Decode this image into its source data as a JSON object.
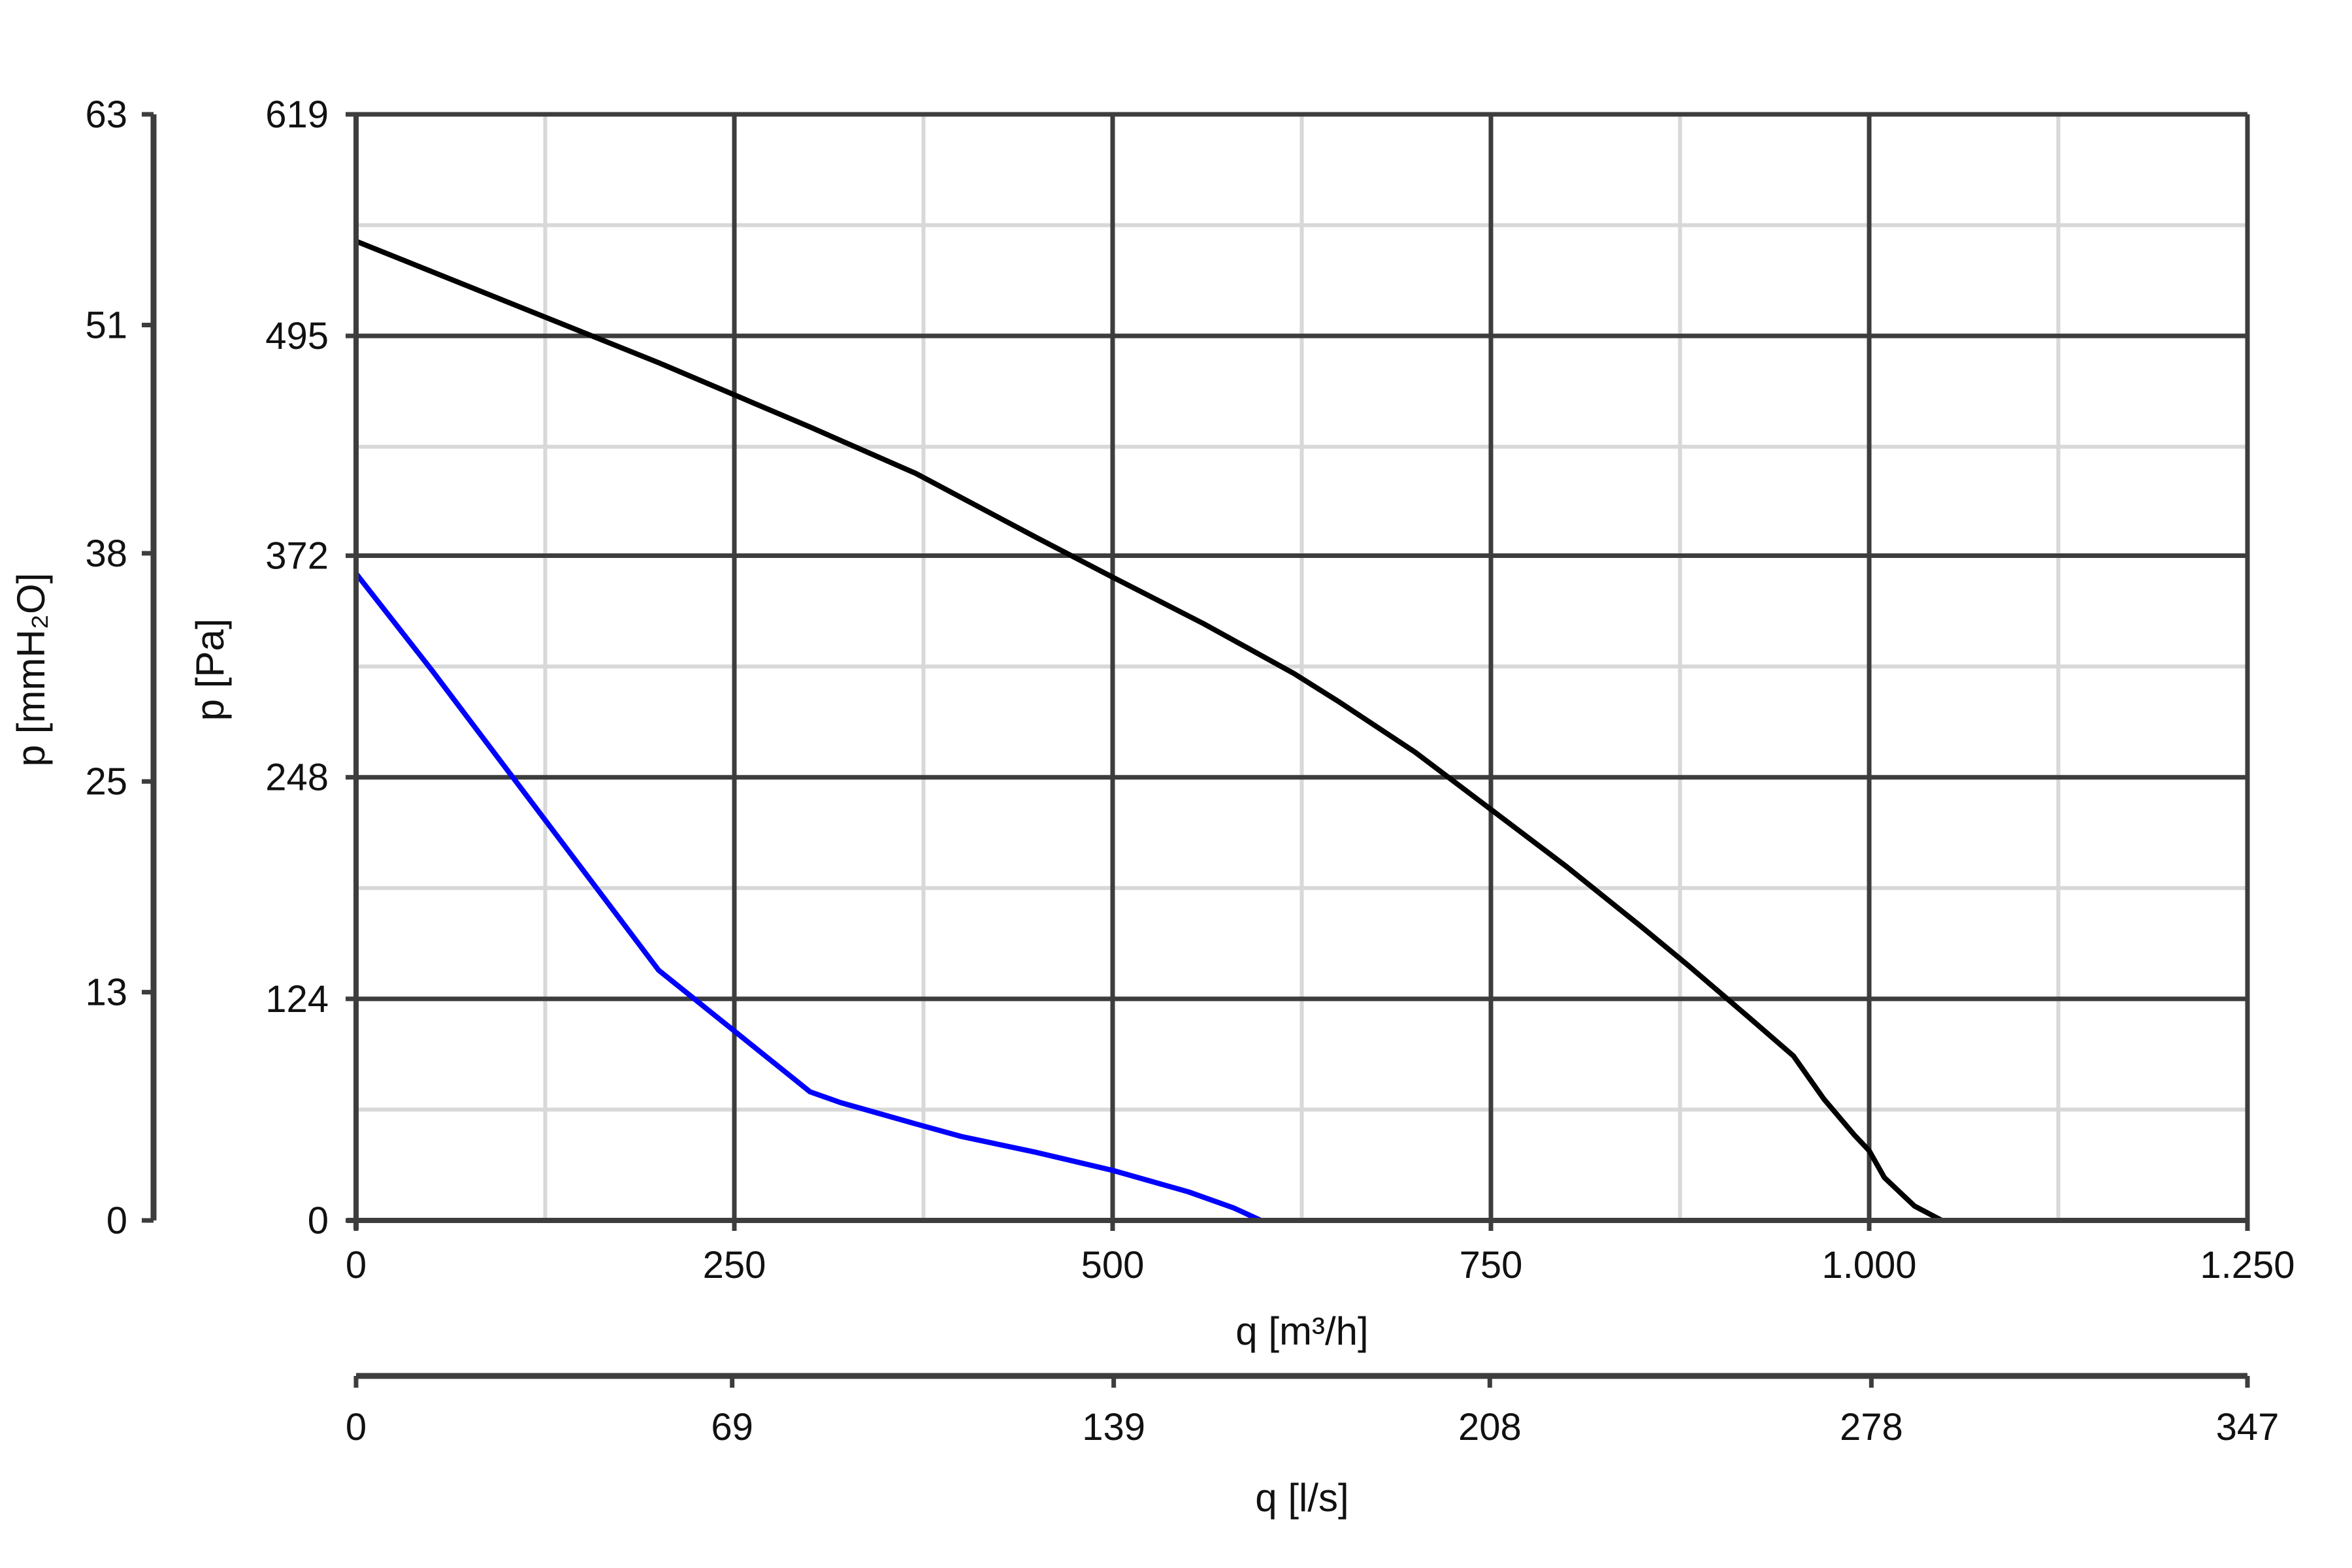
{
  "chart_data": {
    "type": "line",
    "x_axis": {
      "label": "q [m³/h]",
      "range": [
        0,
        1250
      ],
      "ticks": [
        0,
        250,
        500,
        750,
        1000,
        1250
      ],
      "tick_labels": [
        "0",
        "250",
        "500",
        "750",
        "1.000",
        "1.250"
      ],
      "minor_gridlines": [
        125,
        375,
        625,
        875,
        1125
      ]
    },
    "x_axis_secondary": {
      "label": "q [l/s]",
      "range": [
        0,
        347
      ],
      "ticks": [
        0,
        69,
        139,
        208,
        278,
        347
      ],
      "tick_labels": [
        "0",
        "69",
        "139",
        "208",
        "278",
        "347"
      ]
    },
    "y_axis": {
      "label": "p [Pa]",
      "range": [
        0,
        619
      ],
      "ticks": [
        0,
        124,
        248,
        372,
        495,
        619
      ],
      "tick_labels": [
        "0",
        "124",
        "248",
        "372",
        "495",
        "619"
      ],
      "minor_gridlines": [
        62,
        186,
        310,
        433,
        557
      ]
    },
    "y_axis_secondary": {
      "label": "p [mmH₂O]",
      "range": [
        0,
        63
      ],
      "ticks": [
        0,
        13,
        25,
        38,
        51,
        63
      ],
      "tick_labels": [
        "0",
        "13",
        "25",
        "38",
        "51",
        "63"
      ]
    },
    "grid": true,
    "series": [
      {
        "color": "#000000",
        "x": [
          0,
          100,
          200,
          300,
          370,
          450,
          500,
          560,
          620,
          650,
          700,
          750,
          800,
          850,
          880,
          920,
          950,
          970,
          990,
          1000,
          1010,
          1030,
          1048
        ],
        "y": [
          548,
          514,
          480,
          444,
          418,
          382,
          360,
          334,
          306,
          290,
          262,
          230,
          198,
          164,
          143,
          114,
          92,
          68,
          48,
          39,
          24,
          8,
          0
        ]
      },
      {
        "color": "#0000ff",
        "x": [
          0,
          50,
          100,
          150,
          200,
          250,
          300,
          320,
          370,
          400,
          450,
          500,
          550,
          580,
          598
        ],
        "y": [
          362,
          308,
          252,
          196,
          140,
          106,
          72,
          66,
          54,
          47,
          38,
          28,
          16,
          7,
          0
        ]
      }
    ]
  }
}
